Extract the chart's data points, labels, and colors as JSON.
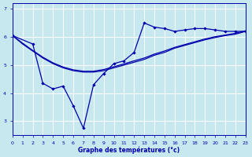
{
  "xlabel": "Graphe des températures (°c)",
  "xlim": [
    0,
    23
  ],
  "ylim": [
    2.5,
    7.2
  ],
  "yticks": [
    3,
    4,
    5,
    6,
    7
  ],
  "xticks": [
    0,
    1,
    2,
    3,
    4,
    5,
    6,
    7,
    8,
    9,
    10,
    11,
    12,
    13,
    14,
    15,
    16,
    17,
    18,
    19,
    20,
    21,
    22,
    23
  ],
  "background_color": "#c8e8f0",
  "grid_color": "#ffffff",
  "line_color": "#0000aa",
  "line1_x": [
    0,
    1,
    2,
    3,
    4,
    5,
    6,
    7,
    8,
    9,
    10,
    11,
    12,
    13,
    14,
    15,
    16,
    17,
    18,
    19,
    20,
    21,
    22,
    23
  ],
  "line1_y": [
    6.05,
    5.75,
    5.5,
    5.25,
    5.05,
    4.9,
    4.8,
    4.75,
    4.75,
    4.8,
    4.9,
    5.0,
    5.1,
    5.2,
    5.35,
    5.45,
    5.6,
    5.7,
    5.8,
    5.9,
    5.98,
    6.05,
    6.1,
    6.2
  ],
  "line2_x": [
    0,
    2,
    3,
    4,
    5,
    6,
    7,
    8,
    9,
    10,
    11,
    12,
    13,
    14,
    15,
    16,
    17,
    18,
    19,
    20,
    21,
    22,
    23
  ],
  "line2_y": [
    6.05,
    5.75,
    4.35,
    4.15,
    4.25,
    3.55,
    2.75,
    4.3,
    4.7,
    5.05,
    5.15,
    5.45,
    6.5,
    6.35,
    6.3,
    6.2,
    6.25,
    6.3,
    6.3,
    6.25,
    6.2,
    6.2,
    6.2
  ],
  "line3_x": [
    0,
    1,
    2,
    3,
    4,
    5,
    6,
    7,
    8,
    9,
    10,
    11,
    12,
    13,
    14,
    15,
    16,
    17,
    18,
    19,
    20,
    21,
    22,
    23
  ],
  "line3_y": [
    6.05,
    5.78,
    5.52,
    5.28,
    5.08,
    4.93,
    4.83,
    4.78,
    4.78,
    4.84,
    4.94,
    5.04,
    5.15,
    5.25,
    5.39,
    5.5,
    5.63,
    5.73,
    5.83,
    5.93,
    6.01,
    6.07,
    6.13,
    6.22
  ]
}
